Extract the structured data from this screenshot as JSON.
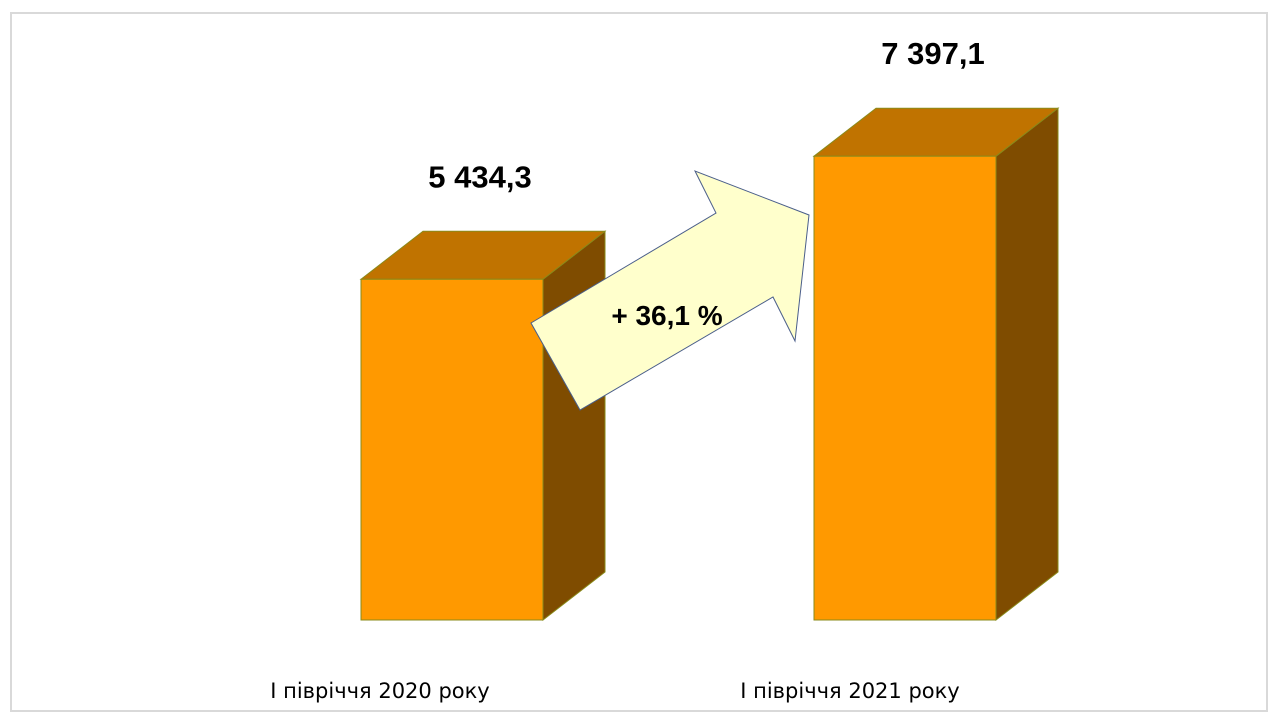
{
  "chart_data": {
    "type": "bar",
    "style": "3d-column",
    "categories": [
      "І півріччя 2020 року",
      "І півріччя 2021 року"
    ],
    "values": [
      5434.3,
      7397.1
    ],
    "value_labels": [
      "5 434,3",
      "7 397,1"
    ],
    "ylim": [
      0,
      8500
    ],
    "grid": false,
    "legend": "none",
    "growth_annotation": "+ 36,1 %",
    "colors": {
      "bar_front": "#FF9900",
      "bar_top": "#C07300",
      "bar_side": "#7F4C00",
      "bar_outline": "#8A8A1A",
      "arrow_fill": "#FFFFCC",
      "arrow_stroke": "#4A5E8A",
      "frame": "#D9D9D9"
    }
  }
}
